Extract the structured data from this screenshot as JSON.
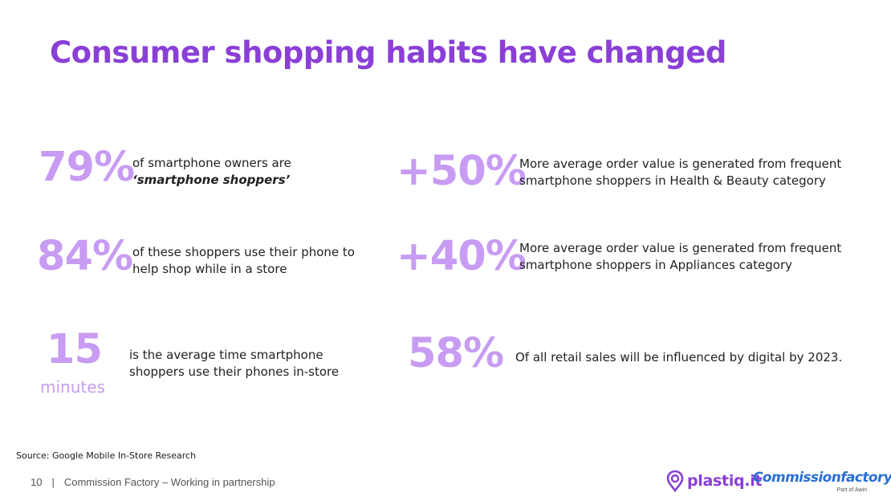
{
  "title": "Consumer shopping habits have changed",
  "colors": {
    "title": "#8a3fd6",
    "stat": "#c79cf2",
    "body_text": "#222222",
    "plastiq": "#8a3fd6",
    "commissionfactory": "#2a6fd6"
  },
  "stats": [
    {
      "value": "79%",
      "line1": "of smartphone owners are",
      "line2": "‘smartphone shoppers’"
    },
    {
      "value": "84%",
      "line1": "of these shoppers use their phone to",
      "line2": "help shop while in a store"
    },
    {
      "value": "15",
      "unit": "minutes",
      "line1": "is the average time smartphone",
      "line2": "shoppers use their phones in-store"
    },
    {
      "value": "+50%",
      "line1": "More average order value is generated from frequent",
      "line2": "smartphone shoppers in Health & Beauty category"
    },
    {
      "value": "+40%",
      "line1": "More average order value is generated from frequent",
      "line2": "smartphone shoppers in Appliances category"
    },
    {
      "value": "58%",
      "line1": "Of all retail sales will be influenced by digital by 2023."
    }
  ],
  "source": "Source: Google Mobile In-Store Research",
  "footer": {
    "page_number": "10",
    "separator": "|",
    "text": "Commission Factory – Working in partnership"
  },
  "logos": {
    "plastiq": {
      "text": "plastiq.it",
      "icon": "plastiq-pin-icon"
    },
    "commissionfactory": {
      "text": "Commissionfactory",
      "subtext": "Part of Awin"
    }
  }
}
